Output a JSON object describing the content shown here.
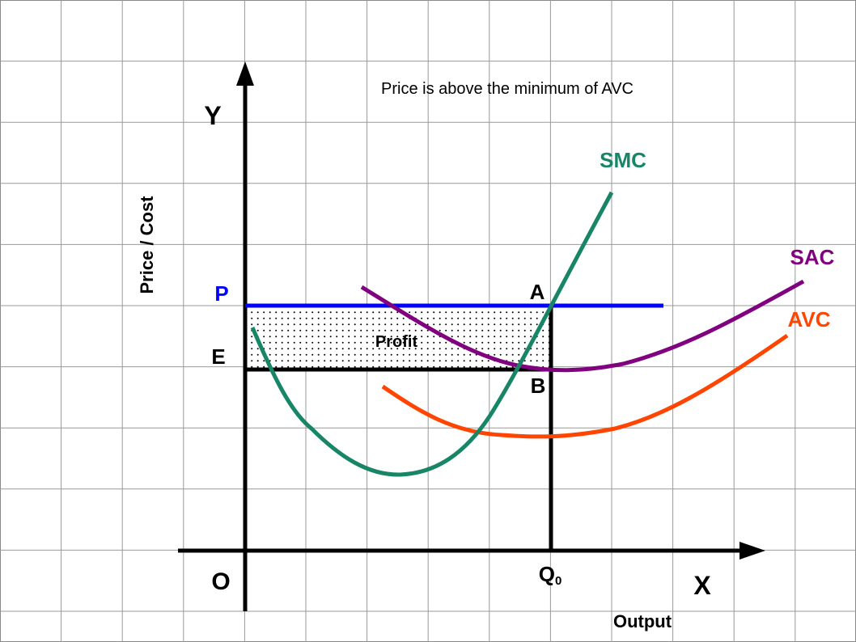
{
  "title": "Price is above the minimum of AVC",
  "axes": {
    "y_letter": "Y",
    "x_letter": "X",
    "origin": "O",
    "y_label": "Price / Cost",
    "x_label": "Output"
  },
  "points": {
    "p": "P",
    "e": "E",
    "a": "A",
    "b": "B",
    "q": "Q",
    "q_sub": "0"
  },
  "region_label": "Profit",
  "curves": {
    "smc": {
      "label": "SMC",
      "color": "#178566"
    },
    "sac": {
      "label": "SAC",
      "color": "#800080"
    },
    "avc": {
      "label": "AVC",
      "color": "#ff4500"
    }
  },
  "price_line_color": "#0000ff"
}
